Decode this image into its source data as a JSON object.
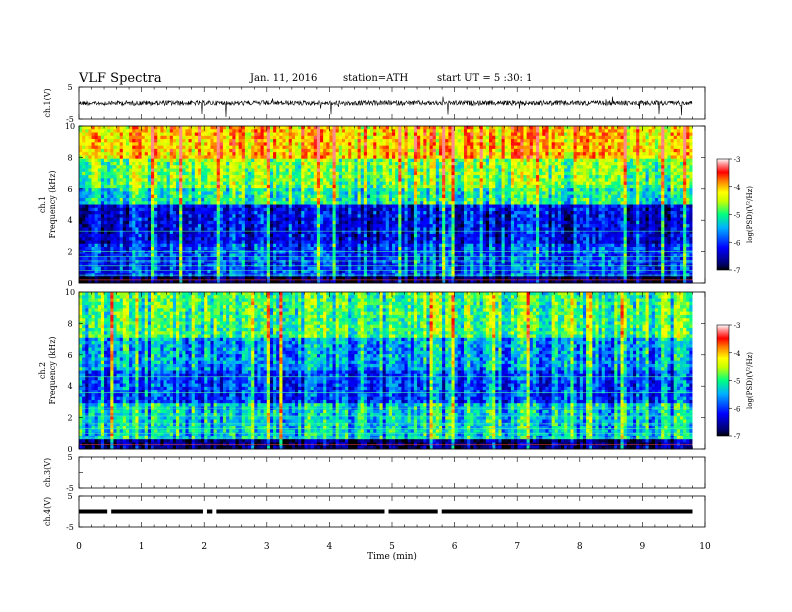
{
  "header": {
    "title": "VLF Spectra",
    "date": "Jan. 11, 2016",
    "station": "station=ATH",
    "start": "start UT = 5 :30: 1"
  },
  "colors": {
    "colormap": [
      "#000066",
      "#0000ff",
      "#00b0ff",
      "#00ff80",
      "#c8ff00",
      "#ffff00",
      "#ff8000",
      "#ff0000",
      "#ff8888",
      "#ffffff"
    ]
  },
  "chart_data": [
    {
      "type": "line",
      "panel": "ch1-waveform",
      "ylabel": "ch.1(V)",
      "yticks": [
        "5",
        "-5"
      ],
      "ylim": [
        -5,
        5
      ],
      "description_values": "noisy waveform centred near 0 V with sparse impulsive spikes",
      "x_range_min": [
        0,
        9.8
      ]
    },
    {
      "type": "heatmap",
      "panel": "ch1-spectrogram",
      "ylabel": "ch.1\nFrequency (kHz)",
      "ylabel_line1": "ch.1",
      "ylabel_line2": "Frequency (kHz)",
      "yticks": [
        "0",
        "2",
        "4",
        "6",
        "8",
        "10"
      ],
      "ylim": [
        0,
        10
      ],
      "colorbar": {
        "label": "log(PSD)(V²/Hz)",
        "ticks": [
          "-3",
          "-4",
          "-5",
          "-6",
          "-7"
        ],
        "range": [
          -7,
          -3
        ]
      }
    },
    {
      "type": "heatmap",
      "panel": "ch2-spectrogram",
      "ylabel_line1": "ch.2",
      "ylabel_line2": "Frequency (kHz)",
      "yticks": [
        "0",
        "2",
        "4",
        "6",
        "8",
        "10"
      ],
      "ylim": [
        0,
        10
      ],
      "colorbar": {
        "label": "log(PSD)(V²/Hz)",
        "ticks": [
          "-3",
          "-4",
          "-5",
          "-6",
          "-7"
        ],
        "range": [
          -7,
          -3
        ]
      }
    },
    {
      "type": "line",
      "panel": "ch3-waveform",
      "ylabel": "ch.3(V)",
      "yticks": [
        "5",
        "-5"
      ],
      "ylim": [
        -5,
        5
      ]
    },
    {
      "type": "line",
      "panel": "ch4-waveform",
      "ylabel": "ch.4(V)",
      "yticks": [
        "5",
        "-5"
      ],
      "ylim": [
        -5,
        5
      ],
      "gaps_min": [
        0.45,
        1.98,
        2.13,
        4.88,
        5.73
      ]
    }
  ],
  "xaxis": {
    "label": "Time (min)",
    "ticks": [
      "0",
      "1",
      "2",
      "3",
      "4",
      "5",
      "6",
      "7",
      "8",
      "9",
      "10"
    ],
    "xlim": [
      0,
      10
    ]
  }
}
